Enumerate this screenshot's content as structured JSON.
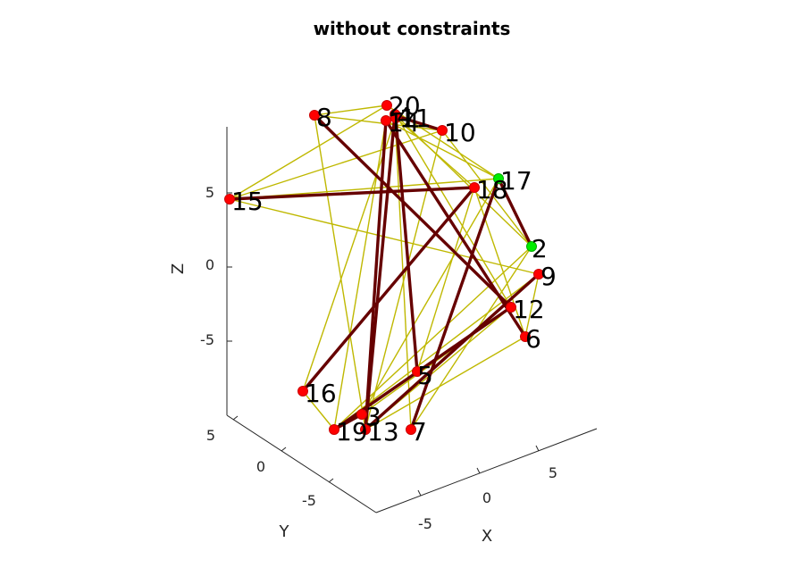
{
  "chart_data": {
    "type": "scatter",
    "title": "without constraints",
    "xlabel": "X",
    "ylabel": "Y",
    "zlabel": "Z",
    "x_ticks": [
      "-5",
      "0",
      "5"
    ],
    "y_ticks": [
      "5",
      "0",
      "-5"
    ],
    "z_ticks": [
      "5",
      "0",
      "-5"
    ],
    "grid": false,
    "colors": {
      "node_default": "#ff0000",
      "node_highlight": "#00ee00",
      "edge_strong": "#660000",
      "edge_weak": "#bfb800"
    },
    "nodes": [
      {
        "label": "1"
      },
      {
        "label": "2",
        "highlight": true
      },
      {
        "label": "3"
      },
      {
        "label": "4"
      },
      {
        "label": "5"
      },
      {
        "label": "6"
      },
      {
        "label": "7"
      },
      {
        "label": "8"
      },
      {
        "label": "9"
      },
      {
        "label": "10"
      },
      {
        "label": "11"
      },
      {
        "label": "12"
      },
      {
        "label": "13"
      },
      {
        "label": "14"
      },
      {
        "label": "15"
      },
      {
        "label": "16"
      },
      {
        "label": "17",
        "highlight": true
      },
      {
        "label": "18"
      },
      {
        "label": "19"
      },
      {
        "label": "20"
      }
    ],
    "edges_strong": [
      [
        15,
        18
      ],
      [
        8,
        12
      ],
      [
        11,
        5
      ],
      [
        4,
        13
      ],
      [
        14,
        13
      ],
      [
        18,
        16
      ],
      [
        17,
        7
      ],
      [
        12,
        19
      ],
      [
        9,
        13
      ],
      [
        17,
        2
      ],
      [
        14,
        6
      ],
      [
        10,
        1
      ],
      [
        3,
        19
      ]
    ],
    "edges_weak": [
      [
        8,
        20
      ],
      [
        8,
        10
      ],
      [
        8,
        13
      ],
      [
        15,
        10
      ],
      [
        15,
        20
      ],
      [
        15,
        9
      ],
      [
        15,
        17
      ],
      [
        20,
        17
      ],
      [
        11,
        18
      ],
      [
        11,
        16
      ],
      [
        4,
        7
      ],
      [
        4,
        2
      ],
      [
        1,
        12
      ],
      [
        10,
        13
      ],
      [
        10,
        2
      ],
      [
        14,
        17
      ],
      [
        14,
        19
      ],
      [
        18,
        6
      ],
      [
        18,
        5
      ],
      [
        17,
        3
      ],
      [
        17,
        7
      ],
      [
        2,
        7
      ],
      [
        9,
        19
      ],
      [
        9,
        6
      ],
      [
        12,
        3
      ],
      [
        6,
        13
      ],
      [
        5,
        12
      ],
      [
        16,
        19
      ],
      [
        19,
        2
      ],
      [
        13,
        12
      ]
    ]
  }
}
